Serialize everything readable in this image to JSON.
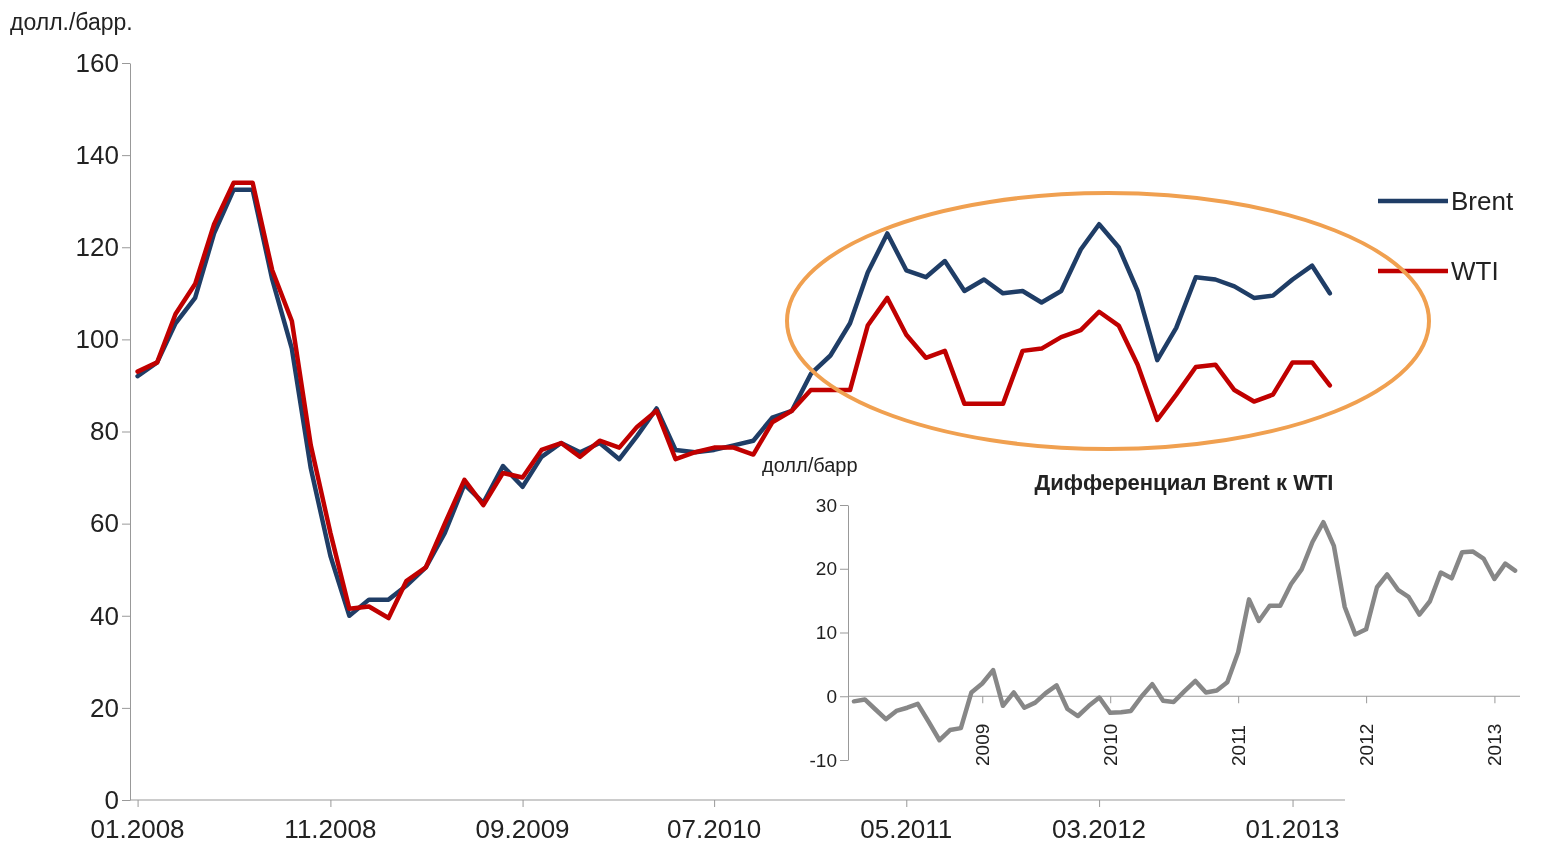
{
  "chart_data": [
    {
      "type": "line",
      "ylabel": "долл./барр.",
      "legend": "right",
      "grid": false,
      "x": [
        "2008-01",
        "2008-02",
        "2008-03",
        "2008-04",
        "2008-05",
        "2008-06",
        "2008-07",
        "2008-08",
        "2008-09",
        "2008-10",
        "2008-11",
        "2008-12",
        "2009-01",
        "2009-02",
        "2009-03",
        "2009-04",
        "2009-05",
        "2009-06",
        "2009-07",
        "2009-08",
        "2009-09",
        "2009-10",
        "2009-11",
        "2009-12",
        "2010-01",
        "2010-02",
        "2010-03",
        "2010-04",
        "2010-05",
        "2010-06",
        "2010-07",
        "2010-08",
        "2010-09",
        "2010-10",
        "2010-11",
        "2010-12",
        "2011-01",
        "2011-02",
        "2011-03",
        "2011-04",
        "2011-05",
        "2011-06",
        "2011-07",
        "2011-08",
        "2011-09",
        "2011-10",
        "2011-11",
        "2011-12",
        "2012-01",
        "2012-02",
        "2012-03",
        "2012-04",
        "2012-05",
        "2012-06",
        "2012-07",
        "2012-08",
        "2012-09",
        "2012-10",
        "2012-11",
        "2012-12",
        "2013-01",
        "2013-02",
        "2013-03"
      ],
      "series": [
        {
          "name": "Brent",
          "color": "#1f3d66",
          "values": [
            92,
            95,
            103.5,
            109,
            123,
            132.5,
            132.5,
            113,
            98,
            72,
            53,
            40,
            43.5,
            43.5,
            46.5,
            50.5,
            58,
            68.5,
            64.5,
            72.5,
            68,
            74.5,
            77.5,
            75.5,
            77.5,
            74,
            79,
            85,
            76,
            75.5,
            76,
            77,
            78,
            83,
            84.5,
            92.5,
            96.5,
            103.5,
            114.5,
            123,
            115,
            113.5,
            117,
            110.5,
            113,
            110,
            110.5,
            108,
            110.5,
            119.5,
            125,
            120,
            110.5,
            95.5,
            102.5,
            113.5,
            113,
            111.5,
            109,
            109.5,
            113,
            116,
            110
          ]
        },
        {
          "name": "WTI",
          "color": "#c00000",
          "values": [
            93,
            95,
            105.5,
            112,
            125,
            134,
            134,
            115,
            104,
            77,
            58,
            41.5,
            42,
            39.5,
            47.5,
            50.5,
            60,
            69.5,
            64,
            71,
            70,
            76,
            77.5,
            74.5,
            78,
            76.5,
            81,
            84.5,
            74,
            75.5,
            76.5,
            76.5,
            75,
            82,
            84.5,
            89,
            89,
            89,
            103,
            109,
            101,
            96,
            97.5,
            86,
            86,
            86,
            97.5,
            98,
            100.5,
            102,
            106,
            103,
            94.5,
            82.5,
            88,
            94,
            94.5,
            89,
            86.5,
            88,
            95,
            95,
            90
          ]
        }
      ],
      "ylim": [
        0,
        160
      ],
      "yticks": [
        0,
        20,
        40,
        60,
        80,
        100,
        120,
        140,
        160
      ],
      "xlim": [
        "2007-12-20",
        "2013-03-25"
      ],
      "xticks": [
        {
          "value": "2008-01",
          "label": "01.2008"
        },
        {
          "value": "2008-11",
          "label": "11.2008"
        },
        {
          "value": "2009-09",
          "label": "09.2009"
        },
        {
          "value": "2010-07",
          "label": "07.2010"
        },
        {
          "value": "2011-05",
          "label": "05.2011"
        },
        {
          "value": "2012-03",
          "label": "03.2012"
        },
        {
          "value": "2013-01",
          "label": "01.2013"
        }
      ]
    },
    {
      "type": "line",
      "title": "Дифференциал Brent к WTI",
      "ylabel": "долл/барр",
      "x": [
        "2008-01",
        "2008-02",
        "2008-03",
        "2008-04",
        "2008-05",
        "2008-06",
        "2008-07",
        "2008-08",
        "2008-09",
        "2008-10",
        "2008-11",
        "2008-12",
        "2009-01",
        "2009-02",
        "2009-03",
        "2009-04",
        "2009-05",
        "2009-06",
        "2009-07",
        "2009-08",
        "2009-09",
        "2009-10",
        "2009-11",
        "2009-12",
        "2010-01",
        "2010-02",
        "2010-03",
        "2010-04",
        "2010-05",
        "2010-06",
        "2010-07",
        "2010-08",
        "2010-09",
        "2010-10",
        "2010-11",
        "2010-12",
        "2011-01",
        "2011-02",
        "2011-03",
        "2011-04",
        "2011-05",
        "2011-06",
        "2011-07",
        "2011-08",
        "2011-09",
        "2011-10",
        "2011-11",
        "2011-12",
        "2012-01",
        "2012-02",
        "2012-03",
        "2012-04",
        "2012-05",
        "2012-06",
        "2012-07",
        "2012-08",
        "2012-09",
        "2012-10",
        "2012-11",
        "2012-12",
        "2013-01",
        "2013-02",
        "2013-03"
      ],
      "series": [
        {
          "color": "#878787",
          "values": [
            -0.8,
            -0.5,
            -2,
            -3.6,
            -2.3,
            -1.8,
            -1.2,
            -4,
            -6.9,
            -5.3,
            -5,
            0.6,
            2,
            4.1,
            -1.5,
            0.6,
            -1.8,
            -1,
            0.5,
            1.7,
            -2,
            -3.1,
            -1.5,
            -0.2,
            -2.6,
            -2.5,
            -2.3,
            0,
            1.9,
            -0.7,
            -0.9,
            0.8,
            2.4,
            0.6,
            0.9,
            2.2,
            6.9,
            15.2,
            11.8,
            14.2,
            14.2,
            17.6,
            19.9,
            24.2,
            27.3,
            23.6,
            14,
            9.7,
            10.5,
            17.1,
            19.1,
            16.7,
            15.6,
            12.8,
            14.9,
            19.4,
            18.5,
            22.6,
            22.7,
            21.6,
            18.4,
            20.8,
            19.7
          ]
        }
      ],
      "ylim": [
        -10,
        30
      ],
      "yticks": [
        -10,
        0,
        10,
        20,
        30
      ],
      "xlim": [
        "2007-12-15",
        "2013-03-15"
      ],
      "xticks": [
        {
          "value": "2009-01",
          "label": "2009"
        },
        {
          "value": "2010-01",
          "label": "2010"
        },
        {
          "value": "2011-01",
          "label": "2011"
        },
        {
          "value": "2012-01",
          "label": "2012"
        },
        {
          "value": "2013-01",
          "label": "2013"
        }
      ]
    }
  ]
}
